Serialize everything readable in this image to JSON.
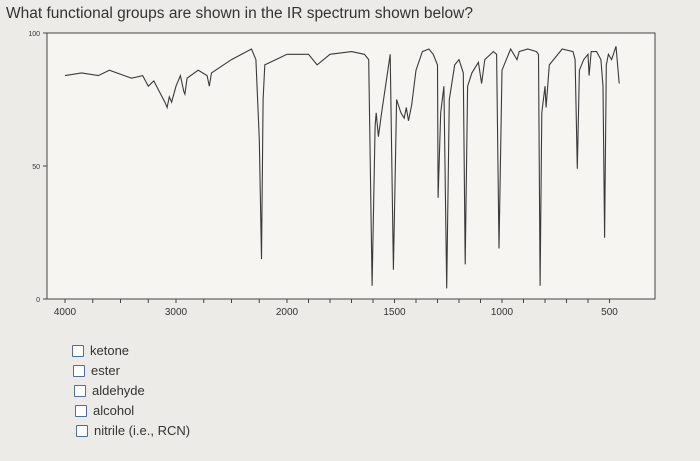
{
  "question": "What functional groups are shown in the IR spectrum shown below?",
  "options": [
    "ketone",
    "ester",
    "aldehyde",
    "alcohol",
    "nitrile (i.e., RCN)"
  ],
  "chart_data": {
    "type": "line",
    "title": "",
    "xlabel": "",
    "ylabel": "",
    "xlim": [
      4000,
      450
    ],
    "ylim": [
      0,
      100
    ],
    "x_scale_change_at": 2000,
    "x_ticks": [
      4000,
      3000,
      2000,
      1500,
      1000,
      500
    ],
    "y_ticks": [
      100,
      50,
      0
    ],
    "grid": false,
    "line_color": "#3a3a3a",
    "series": [
      {
        "x": [
          4000,
          3850,
          3700,
          3600,
          3400,
          3300,
          3250,
          3200,
          3150,
          3100,
          3080,
          3060,
          3040,
          3020,
          3000,
          2960,
          2930,
          2920,
          2900,
          2800,
          2720,
          2700,
          2680,
          2500,
          2320,
          2280,
          2250,
          2230,
          2215,
          2200,
          2100,
          2000,
          1900,
          1860,
          1800,
          1700,
          1640,
          1620,
          1604,
          1590,
          1585,
          1575,
          1560,
          1520,
          1505,
          1490,
          1470,
          1455,
          1445,
          1435,
          1420,
          1400,
          1370,
          1340,
          1320,
          1300,
          1297,
          1285,
          1270,
          1257,
          1245,
          1220,
          1200,
          1180,
          1171,
          1160,
          1140,
          1110,
          1095,
          1080,
          1040,
          1025,
          1014,
          1000,
          960,
          930,
          920,
          880,
          840,
          830,
          823,
          815,
          800,
          795,
          780,
          720,
          670,
          660,
          650,
          640,
          620,
          600,
          595,
          585,
          560,
          540,
          530,
          523,
          515,
          505,
          490,
          470,
          455
        ],
        "y": [
          84,
          85,
          84,
          86,
          83,
          84,
          80,
          82,
          78,
          74,
          72,
          76,
          74,
          77,
          80,
          84,
          78,
          77,
          83,
          86,
          84,
          80,
          85,
          90,
          94,
          90,
          60,
          15,
          75,
          88,
          90,
          92,
          92,
          88,
          92,
          93,
          92,
          90,
          5,
          65,
          70,
          61,
          70,
          92,
          11,
          75,
          70,
          68,
          72,
          67,
          73,
          86,
          93,
          94,
          92,
          88,
          38,
          70,
          80,
          4,
          75,
          88,
          90,
          85,
          13,
          80,
          85,
          89,
          81,
          90,
          93,
          92,
          19,
          86,
          94,
          90,
          93,
          94,
          93,
          92,
          5,
          70,
          80,
          72,
          88,
          94,
          93,
          90,
          49,
          86,
          90,
          92,
          84,
          93,
          93,
          90,
          80,
          23,
          88,
          92,
          90,
          95,
          81
        ]
      }
    ]
  }
}
